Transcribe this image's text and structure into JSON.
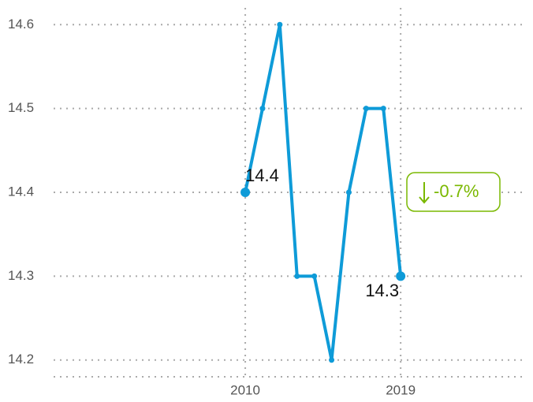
{
  "chart_data": {
    "type": "line",
    "x": [
      2010,
      2011,
      2012,
      2013,
      2014,
      2015,
      2016,
      2017,
      2018,
      2019
    ],
    "series": [
      {
        "color": "#0e9bd8",
        "values": [
          14.4,
          14.5,
          14.6,
          14.3,
          14.3,
          14.2,
          14.4,
          14.5,
          14.5,
          14.3
        ],
        "value_labels": [
          "14.4",
          null,
          null,
          null,
          null,
          null,
          null,
          null,
          null,
          "14.3"
        ]
      }
    ],
    "xlim": [
      1998.9,
      2026.3
    ],
    "xticks": [
      2010,
      2019
    ],
    "ylim": [
      14.18,
      14.62
    ],
    "yticks": [
      14.2,
      14.3,
      14.4,
      14.5,
      14.6
    ],
    "grid": true,
    "annotation": {
      "label": "-0.7%",
      "color": "#7ab800"
    }
  }
}
